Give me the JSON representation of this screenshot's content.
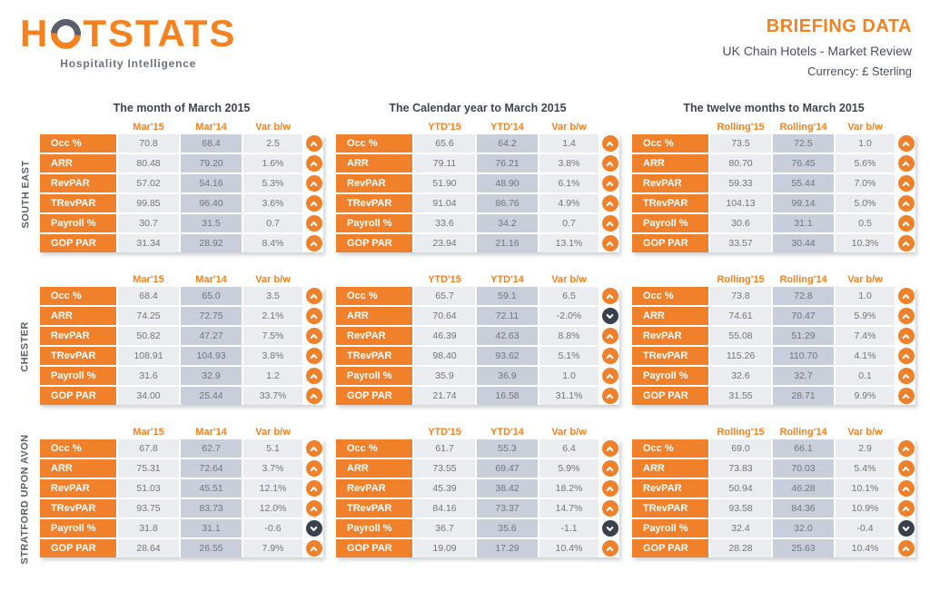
{
  "header": {
    "logo_pre": "H",
    "logo_post": "TSTATS",
    "tagline": "Hospitality Intelligence",
    "title": "BRIEFING DATA",
    "subtitle": "UK Chain Hotels - Market Review",
    "currency": "Currency: £ Sterling"
  },
  "colors": {
    "orange": "#F5821F",
    "table_orange": "#F0812A",
    "down_arrow_bg": "#3A414D",
    "col_2015_bg": "#EAECEF",
    "col_2014_bg": "#C9CFDA",
    "variance_bg": "#EAECEF",
    "dark_text": "#4A5160"
  },
  "report": {
    "periods": [
      {
        "title": "The month of March 2015",
        "columns": [
          "Mar'15",
          "Mar'14",
          "Var b/w"
        ]
      },
      {
        "title": "The Calendar year to March 2015",
        "columns": [
          "YTD'15",
          "YTD'14",
          "Var b/w"
        ]
      },
      {
        "title": "The twelve months to March 2015",
        "columns": [
          "Rolling'15",
          "Rolling'14",
          "Var b/w"
        ]
      }
    ],
    "metrics": [
      "Occ %",
      "ARR",
      "RevPAR",
      "TRevPAR",
      "Payroll %",
      "GOP PAR"
    ],
    "regions": [
      {
        "name": "SOUTH EAST",
        "tables": [
          {
            "rows": [
              {
                "values": [
                  "70.8",
                  "68.4",
                  "2.5"
                ],
                "trend": "up"
              },
              {
                "values": [
                  "80.48",
                  "79.20",
                  "1.6%"
                ],
                "trend": "up"
              },
              {
                "values": [
                  "57.02",
                  "54.16",
                  "5.3%"
                ],
                "trend": "up"
              },
              {
                "values": [
                  "99.85",
                  "96.40",
                  "3.6%"
                ],
                "trend": "up"
              },
              {
                "values": [
                  "30.7",
                  "31.5",
                  "0.7"
                ],
                "trend": "up"
              },
              {
                "values": [
                  "31.34",
                  "28.92",
                  "8.4%"
                ],
                "trend": "up"
              }
            ]
          },
          {
            "rows": [
              {
                "values": [
                  "65.6",
                  "64.2",
                  "1.4"
                ],
                "trend": "up"
              },
              {
                "values": [
                  "79.11",
                  "76.21",
                  "3.8%"
                ],
                "trend": "up"
              },
              {
                "values": [
                  "51.90",
                  "48.90",
                  "6.1%"
                ],
                "trend": "up"
              },
              {
                "values": [
                  "91.04",
                  "86.76",
                  "4.9%"
                ],
                "trend": "up"
              },
              {
                "values": [
                  "33.6",
                  "34.2",
                  "0.7"
                ],
                "trend": "up"
              },
              {
                "values": [
                  "23.94",
                  "21.16",
                  "13.1%"
                ],
                "trend": "up"
              }
            ]
          },
          {
            "rows": [
              {
                "values": [
                  "73.5",
                  "72.5",
                  "1.0"
                ],
                "trend": "up"
              },
              {
                "values": [
                  "80.70",
                  "76.45",
                  "5.6%"
                ],
                "trend": "up"
              },
              {
                "values": [
                  "59.33",
                  "55.44",
                  "7.0%"
                ],
                "trend": "up"
              },
              {
                "values": [
                  "104.13",
                  "99.14",
                  "5.0%"
                ],
                "trend": "up"
              },
              {
                "values": [
                  "30.6",
                  "31.1",
                  "0.5"
                ],
                "trend": "up"
              },
              {
                "values": [
                  "33.57",
                  "30.44",
                  "10.3%"
                ],
                "trend": "up"
              }
            ]
          }
        ]
      },
      {
        "name": "CHESTER",
        "tables": [
          {
            "rows": [
              {
                "values": [
                  "68.4",
                  "65.0",
                  "3.5"
                ],
                "trend": "up"
              },
              {
                "values": [
                  "74.25",
                  "72.75",
                  "2.1%"
                ],
                "trend": "up"
              },
              {
                "values": [
                  "50.82",
                  "47.27",
                  "7.5%"
                ],
                "trend": "up"
              },
              {
                "values": [
                  "108.91",
                  "104.93",
                  "3.8%"
                ],
                "trend": "up"
              },
              {
                "values": [
                  "31.6",
                  "32.9",
                  "1.2"
                ],
                "trend": "up"
              },
              {
                "values": [
                  "34.00",
                  "25.44",
                  "33.7%"
                ],
                "trend": "up"
              }
            ]
          },
          {
            "rows": [
              {
                "values": [
                  "65.7",
                  "59.1",
                  "6.5"
                ],
                "trend": "up"
              },
              {
                "values": [
                  "70.64",
                  "72.11",
                  "-2.0%"
                ],
                "trend": "down"
              },
              {
                "values": [
                  "46.39",
                  "42.63",
                  "8.8%"
                ],
                "trend": "up"
              },
              {
                "values": [
                  "98.40",
                  "93.62",
                  "5.1%"
                ],
                "trend": "up"
              },
              {
                "values": [
                  "35.9",
                  "36.9",
                  "1.0"
                ],
                "trend": "up"
              },
              {
                "values": [
                  "21.74",
                  "16.58",
                  "31.1%"
                ],
                "trend": "up"
              }
            ]
          },
          {
            "rows": [
              {
                "values": [
                  "73.8",
                  "72.8",
                  "1.0"
                ],
                "trend": "up"
              },
              {
                "values": [
                  "74.61",
                  "70.47",
                  "5.9%"
                ],
                "trend": "up"
              },
              {
                "values": [
                  "55.08",
                  "51.29",
                  "7.4%"
                ],
                "trend": "up"
              },
              {
                "values": [
                  "115.26",
                  "110.70",
                  "4.1%"
                ],
                "trend": "up"
              },
              {
                "values": [
                  "32.6",
                  "32.7",
                  "0.1"
                ],
                "trend": "up"
              },
              {
                "values": [
                  "31.55",
                  "28.71",
                  "9.9%"
                ],
                "trend": "up"
              }
            ]
          }
        ]
      },
      {
        "name": "STRATFORD UPON AVON",
        "tables": [
          {
            "rows": [
              {
                "values": [
                  "67.8",
                  "62.7",
                  "5.1"
                ],
                "trend": "up"
              },
              {
                "values": [
                  "75.31",
                  "72.64",
                  "3.7%"
                ],
                "trend": "up"
              },
              {
                "values": [
                  "51.03",
                  "45.51",
                  "12.1%"
                ],
                "trend": "up"
              },
              {
                "values": [
                  "93.75",
                  "83.73",
                  "12.0%"
                ],
                "trend": "up"
              },
              {
                "values": [
                  "31.8",
                  "31.1",
                  "-0.6"
                ],
                "trend": "down"
              },
              {
                "values": [
                  "28.64",
                  "26.55",
                  "7.9%"
                ],
                "trend": "up"
              }
            ]
          },
          {
            "rows": [
              {
                "values": [
                  "61.7",
                  "55.3",
                  "6.4"
                ],
                "trend": "up"
              },
              {
                "values": [
                  "73.55",
                  "69.47",
                  "5.9%"
                ],
                "trend": "up"
              },
              {
                "values": [
                  "45.39",
                  "38.42",
                  "18.2%"
                ],
                "trend": "up"
              },
              {
                "values": [
                  "84.16",
                  "73.37",
                  "14.7%"
                ],
                "trend": "up"
              },
              {
                "values": [
                  "36.7",
                  "35.6",
                  "-1.1"
                ],
                "trend": "down"
              },
              {
                "values": [
                  "19.09",
                  "17.29",
                  "10.4%"
                ],
                "trend": "up"
              }
            ]
          },
          {
            "rows": [
              {
                "values": [
                  "69.0",
                  "66.1",
                  "2.9"
                ],
                "trend": "up"
              },
              {
                "values": [
                  "73.83",
                  "70.03",
                  "5.4%"
                ],
                "trend": "up"
              },
              {
                "values": [
                  "50.94",
                  "46.28",
                  "10.1%"
                ],
                "trend": "up"
              },
              {
                "values": [
                  "93.58",
                  "84.36",
                  "10.9%"
                ],
                "trend": "up"
              },
              {
                "values": [
                  "32.4",
                  "32.0",
                  "-0.4"
                ],
                "trend": "down"
              },
              {
                "values": [
                  "28.28",
                  "25.63",
                  "10.4%"
                ],
                "trend": "up"
              }
            ]
          }
        ]
      }
    ]
  }
}
